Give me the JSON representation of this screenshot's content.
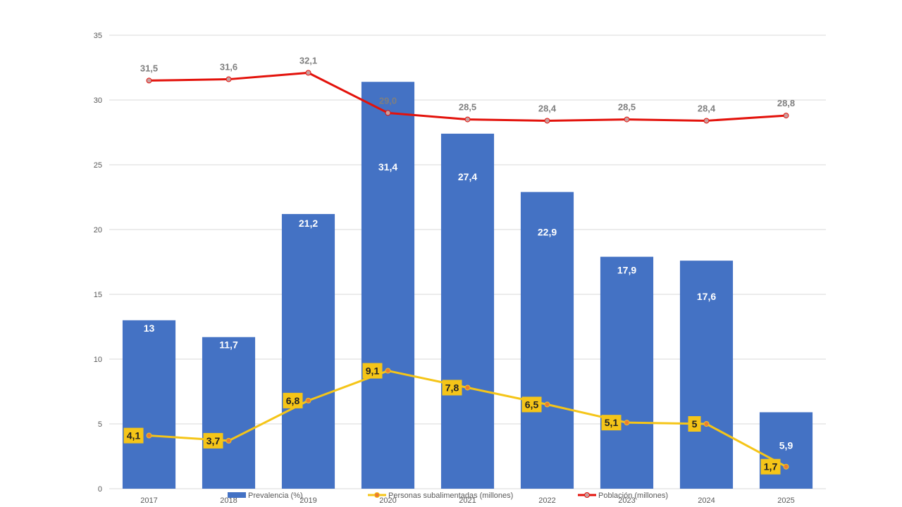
{
  "chart_data": {
    "type": "bar",
    "categories": [
      "2017",
      "2018",
      "2019",
      "2020",
      "2021",
      "2022",
      "2023",
      "2024",
      "2025"
    ],
    "ylim": [
      0,
      35
    ],
    "yticks": [
      0,
      5,
      10,
      15,
      20,
      25,
      30,
      35
    ],
    "grid": true,
    "legend_position": "bottom",
    "series": [
      {
        "name": "Prevalencia (%)",
        "kind": "bar",
        "color": "#4472C4",
        "values": [
          13,
          11.7,
          21.2,
          31.4,
          27.4,
          22.9,
          17.9,
          17.6,
          5.9
        ],
        "labels": [
          "13",
          "11,7",
          "21,2",
          "31,4",
          "27,4",
          "22,9",
          "17,9",
          "17,6",
          "5,9"
        ]
      },
      {
        "name": "Personas subalimentadas (millones)",
        "kind": "line",
        "color": "#F5C518",
        "marker_color": "#ED7D31",
        "values": [
          4.1,
          3.7,
          6.8,
          9.1,
          7.8,
          6.5,
          5.1,
          5,
          1.7
        ],
        "labels": [
          "4,1",
          "3,7",
          "6,8",
          "9,1",
          "7,8",
          "6,5",
          "5,1",
          "5",
          "1,7"
        ]
      },
      {
        "name": "Población (millones)",
        "kind": "line",
        "color": "#E3120B",
        "marker_color": "#C9A0A0",
        "values": [
          31.5,
          31.6,
          32.1,
          29.0,
          28.5,
          28.4,
          28.5,
          28.4,
          28.8
        ],
        "labels": [
          "31,5",
          "31,6",
          "32,1",
          "29,0",
          "28,5",
          "28,4",
          "28,5",
          "28,4",
          "28,8"
        ]
      }
    ]
  }
}
